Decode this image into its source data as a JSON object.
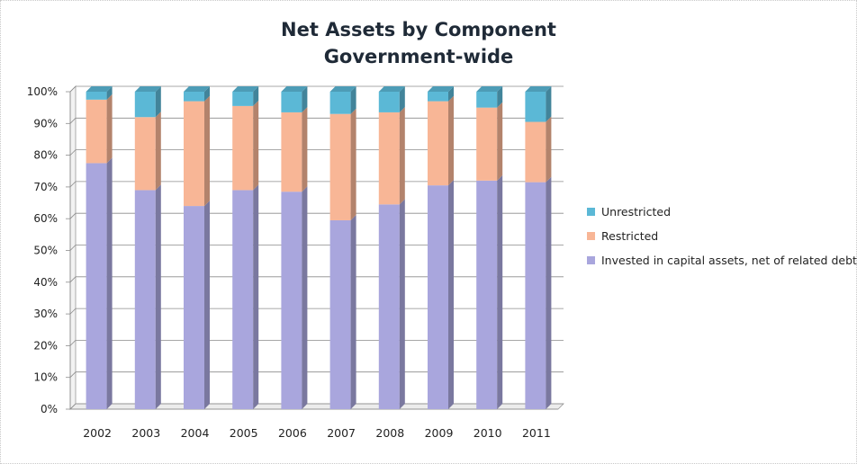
{
  "chart_data": {
    "type": "bar",
    "stacked": true,
    "percent_stacked": true,
    "title": "Net Assets by Component",
    "subtitle": "Government-wide",
    "categories": [
      "2002",
      "2003",
      "2004",
      "2005",
      "2006",
      "2007",
      "2008",
      "2009",
      "2010",
      "2011"
    ],
    "series": [
      {
        "name": "Invested in capital assets, net of related debt",
        "color": "#a9a6dd",
        "values": [
          77.5,
          69,
          64,
          69,
          68.5,
          59.5,
          64.5,
          70.5,
          72,
          71.5
        ]
      },
      {
        "name": "Restricted",
        "color": "#f8b696",
        "values": [
          20,
          23,
          33,
          26.5,
          25,
          33.5,
          29,
          26.5,
          23,
          19
        ]
      },
      {
        "name": "Unrestricted",
        "color": "#5bb8d6",
        "values": [
          2.5,
          8,
          3,
          4.5,
          6.5,
          7,
          6.5,
          3,
          5,
          9.5
        ]
      }
    ],
    "ylim": [
      0,
      100
    ],
    "yticks": [
      "0%",
      "10%",
      "20%",
      "30%",
      "40%",
      "50%",
      "60%",
      "70%",
      "80%",
      "90%",
      "100%"
    ],
    "grid": true,
    "legend_position": "right"
  }
}
